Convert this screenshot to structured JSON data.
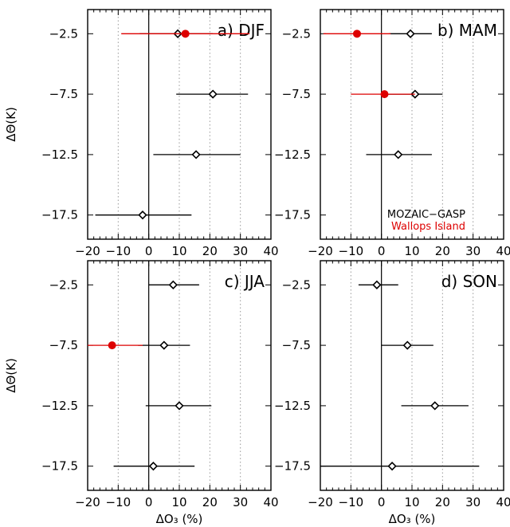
{
  "chart_data": {
    "shared": {
      "xlim": [
        -20,
        40
      ],
      "ylim": [
        -19.5,
        -0.5
      ],
      "xticks": [
        -20,
        -10,
        0,
        10,
        20,
        30,
        40
      ],
      "yticks": [
        -2.5,
        -7.5,
        -12.5,
        -17.5
      ],
      "xlabel": "ΔO₃ (%)",
      "ylabel": "ΔΘ(K)",
      "grid_x": [
        -10,
        10,
        20,
        30
      ],
      "zero_line": 0
    },
    "legend": [
      {
        "name": "MOZAIC−GASP",
        "color": "#000000",
        "marker": "open-diamond"
      },
      {
        "name": "Wallops Island",
        "color": "#dd0000",
        "marker": "filled-circle"
      }
    ],
    "panels": [
      {
        "label": "a) DJF",
        "type": "scatter",
        "series": [
          {
            "name": "MOZAIC−GASP",
            "color": "#000000",
            "points": [
              {
                "y": -2.5,
                "x": 9.5,
                "xmin": -3,
                "xmax": 21
              },
              {
                "y": -7.5,
                "x": 21,
                "xmin": 9,
                "xmax": 32.5
              },
              {
                "y": -12.5,
                "x": 15.5,
                "xmin": 1.5,
                "xmax": 30
              },
              {
                "y": -17.5,
                "x": -2,
                "xmin": -17.5,
                "xmax": 14
              }
            ]
          },
          {
            "name": "Wallops Island",
            "color": "#dd0000",
            "points": [
              {
                "y": -2.5,
                "x": 12,
                "xmin": -9,
                "xmax": 33
              }
            ]
          }
        ]
      },
      {
        "label": "b) MAM",
        "type": "scatter",
        "series": [
          {
            "name": "MOZAIC−GASP",
            "color": "#000000",
            "points": [
              {
                "y": -2.5,
                "x": 9.5,
                "xmin": 2.5,
                "xmax": 16.5
              },
              {
                "y": -7.5,
                "x": 11,
                "xmin": 2,
                "xmax": 20
              },
              {
                "y": -12.5,
                "x": 5.5,
                "xmin": -5,
                "xmax": 16.5
              }
            ]
          },
          {
            "name": "Wallops Island",
            "color": "#dd0000",
            "points": [
              {
                "y": -2.5,
                "x": -8,
                "xmin": -19,
                "xmax": 3
              },
              {
                "y": -7.5,
                "x": 1,
                "xmin": -10,
                "xmax": 11
              }
            ]
          }
        ]
      },
      {
        "label": "c) JJA",
        "type": "scatter",
        "series": [
          {
            "name": "MOZAIC−GASP",
            "color": "#000000",
            "points": [
              {
                "y": -2.5,
                "x": 8,
                "xmin": 0,
                "xmax": 16.5
              },
              {
                "y": -7.5,
                "x": 5,
                "xmin": -3.5,
                "xmax": 13.5
              },
              {
                "y": -12.5,
                "x": 10,
                "xmin": -1,
                "xmax": 20.5
              },
              {
                "y": -17.5,
                "x": 1.5,
                "xmin": -11.5,
                "xmax": 15
              }
            ]
          },
          {
            "name": "Wallops Island",
            "color": "#dd0000",
            "points": [
              {
                "y": -7.5,
                "x": -12,
                "xmin": -20,
                "xmax": -2
              }
            ]
          }
        ]
      },
      {
        "label": "d) SON",
        "type": "scatter",
        "series": [
          {
            "name": "MOZAIC−GASP",
            "color": "#000000",
            "points": [
              {
                "y": -2.5,
                "x": -1.5,
                "xmin": -7.5,
                "xmax": 5.5
              },
              {
                "y": -7.5,
                "x": 8.5,
                "xmin": 0,
                "xmax": 17
              },
              {
                "y": -12.5,
                "x": 17.5,
                "xmin": 6.5,
                "xmax": 28.5
              },
              {
                "y": -17.5,
                "x": 3.5,
                "xmin": -20,
                "xmax": 32
              }
            ]
          }
        ]
      }
    ]
  }
}
